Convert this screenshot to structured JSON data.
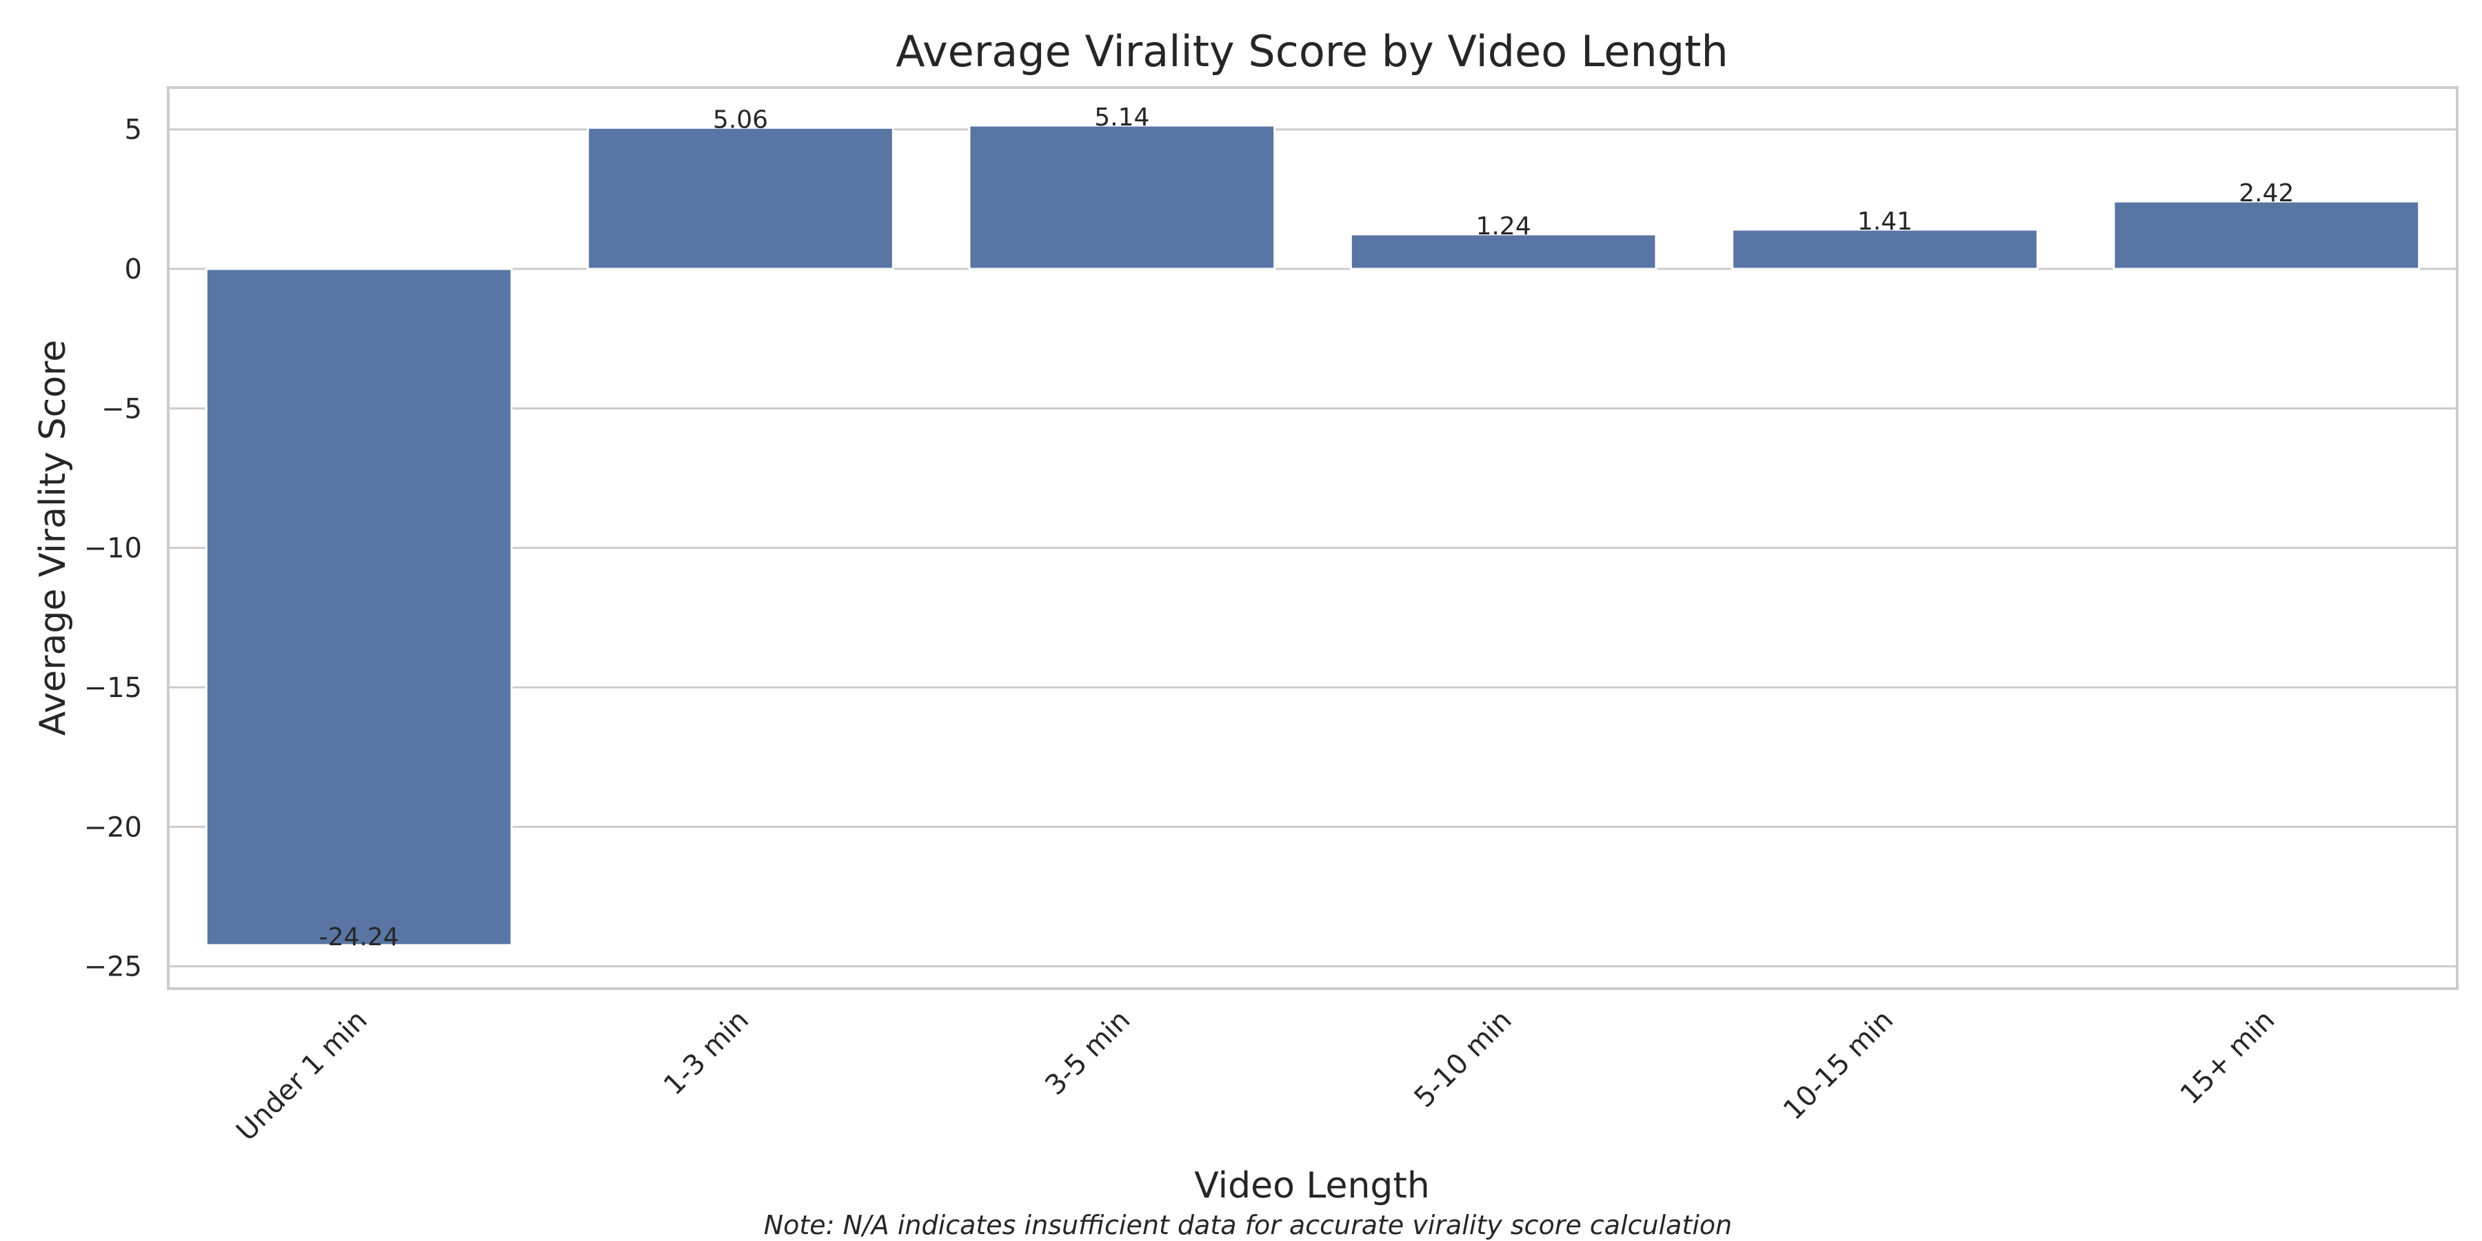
{
  "chart_data": {
    "type": "bar",
    "title": "Average Virality Score by Video Length",
    "xlabel": "Video Length",
    "ylabel": "Average Virality Score",
    "categories": [
      "Under 1 min",
      "1-3 min",
      "3-5 min",
      "5-10 min",
      "10-15 min",
      "15+ min"
    ],
    "values": [
      -24.24,
      5.06,
      5.14,
      1.24,
      1.41,
      2.42
    ],
    "value_labels": [
      "-24.24",
      "5.06",
      "5.14",
      "1.24",
      "1.41",
      "2.42"
    ],
    "ylim": [
      -25.8,
      6.5
    ],
    "yticks": [
      5,
      0,
      -5,
      -10,
      -15,
      -20,
      -25
    ],
    "ytick_labels": [
      "5",
      "0",
      "−5",
      "−10",
      "−15",
      "−20",
      "−25"
    ],
    "grid": true,
    "legend": false,
    "bar_color": "#5875a4",
    "note": "Note: N/A indicates insufficient data for accurate virality score calculation"
  }
}
